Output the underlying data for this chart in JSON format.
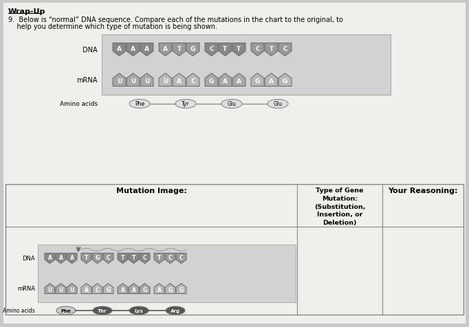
{
  "title": "Wrap-Up",
  "question_line1": "9.  Below is “normal” DNA sequence. Compare each of the mutations in the chart to the original, to",
  "question_line2": "    help you determine which type of mutation is being shown.",
  "bg_color": "#c8c8c8",
  "paper_color": "#f0efec",
  "normal_dna_groups": [
    [
      "A",
      "A",
      "A"
    ],
    [
      "A",
      "T",
      "G"
    ],
    [
      "C",
      "T",
      "T"
    ],
    [
      "C",
      "T",
      "C"
    ]
  ],
  "normal_mrna_groups": [
    [
      "U",
      "U",
      "U"
    ],
    [
      "U",
      "A",
      "C"
    ],
    [
      "G",
      "A",
      "A"
    ],
    [
      "G",
      "A",
      "G"
    ]
  ],
  "normal_amino": [
    "Phe",
    "Tyr",
    "Glu",
    "Glu"
  ],
  "mut_dna_groups": [
    [
      "A",
      "A",
      "A"
    ],
    [
      "T",
      "G",
      "C"
    ],
    [
      "T",
      "T",
      "C"
    ],
    [
      "T",
      "C",
      "C"
    ]
  ],
  "mut_mrna_groups": [
    [
      "U",
      "U",
      "U"
    ],
    [
      "A",
      "C",
      "G"
    ],
    [
      "A",
      "A",
      "G"
    ],
    [
      "A",
      "G",
      "G"
    ]
  ],
  "mut_amino": [
    "Phe",
    "Thr",
    "Lys",
    "Arg"
  ],
  "mutation_header": "Mutation Image:",
  "type_header": "Type of Gene\nMutation:\n(Substitution,\nInsertion, or\nDeletion)",
  "reasoning_header": "Your Reasoning:",
  "dna_colors": [
    "#888888",
    "#9a9a9a",
    "#888888",
    "#9a9a9a"
  ],
  "mrna_colors": [
    "#a8a8a8",
    "#b8b8b8",
    "#a8a8a8",
    "#b8b8b8"
  ],
  "amino_normal_fc": "#e0e0e0",
  "amino_normal_tc": "black",
  "amino_mut_fc_first": "#cccccc",
  "amino_mut_fc_rest": "#555555",
  "amino_mut_tc_first": "black",
  "amino_mut_tc_rest": "white"
}
